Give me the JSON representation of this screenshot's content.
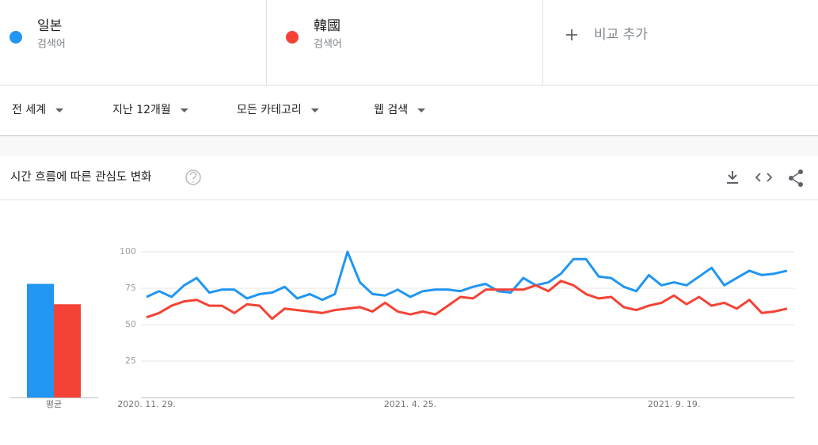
{
  "term_labels": [
    "검색어",
    "검색어"
  ],
  "add_compare": "비교 추가",
  "filters": [
    "전 세계",
    "지난 12개월",
    "모든 카테고리",
    "웹 검색"
  ],
  "section_title": "시간 흐름에 따른 관심도 변화",
  "chart_data": {
    "type": "line",
    "x": [
      "2020. 11. 29.",
      null,
      null,
      null,
      null,
      null,
      null,
      null,
      null,
      null,
      null,
      null,
      null,
      null,
      null,
      null,
      null,
      null,
      null,
      null,
      null,
      "2021. 4. 25.",
      null,
      null,
      null,
      null,
      null,
      null,
      null,
      null,
      null,
      null,
      null,
      null,
      null,
      null,
      null,
      null,
      null,
      null,
      null,
      null,
      "2021. 9. 19.",
      null,
      null,
      null,
      null,
      null,
      null,
      null,
      null,
      null
    ],
    "series": [
      {
        "name": "일본",
        "color": "#2196f3",
        "values": [
          69,
          73,
          69,
          77,
          82,
          72,
          74,
          74,
          68,
          71,
          72,
          76,
          68,
          71,
          67,
          71,
          100,
          79,
          71,
          70,
          74,
          69,
          73,
          74,
          74,
          73,
          76,
          78,
          73,
          72,
          82,
          77,
          79,
          85,
          95,
          95,
          83,
          82,
          76,
          73,
          84,
          77,
          79,
          77,
          83,
          89,
          77,
          82,
          87,
          84,
          85,
          87
        ]
      },
      {
        "name": "韓國",
        "color": "#f44336",
        "values": [
          55,
          58,
          63,
          66,
          67,
          63,
          63,
          58,
          64,
          63,
          54,
          61,
          60,
          59,
          58,
          60,
          61,
          62,
          59,
          65,
          59,
          57,
          59,
          57,
          63,
          69,
          68,
          74,
          74,
          74,
          74,
          77,
          73,
          80,
          77,
          71,
          68,
          69,
          62,
          60,
          63,
          65,
          70,
          64,
          69,
          63,
          65,
          61,
          67,
          58,
          59,
          61
        ]
      }
    ],
    "average": {
      "label": "평균",
      "values": [
        78,
        64
      ]
    },
    "ylim": [
      0,
      100
    ],
    "yticks": [
      25,
      50,
      75,
      100
    ],
    "grid": true
  }
}
